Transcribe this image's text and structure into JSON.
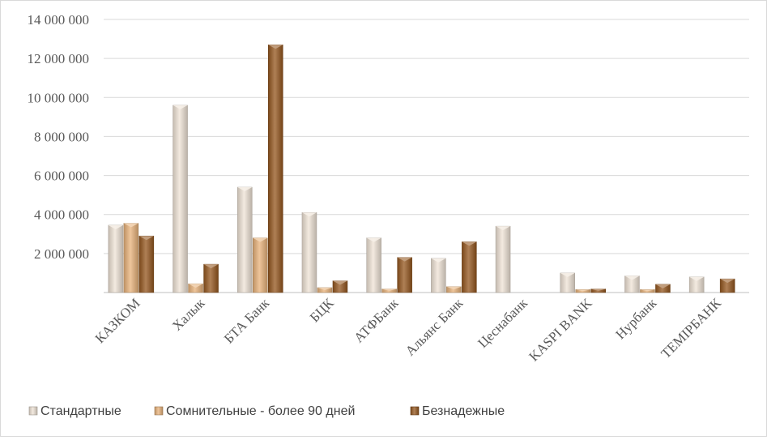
{
  "chart_data": {
    "type": "bar",
    "categories": [
      "КАЗКОМ",
      "Халык",
      "БТА Банк",
      "БЦК",
      "АТФБанк",
      "Альянс Банк",
      "Цеснабанк",
      "KASPI BANK",
      "Нурбанк",
      "ТЕМIРБАНК"
    ],
    "series": [
      {
        "name": "Стандартные",
        "color": "#efe3d6",
        "values": [
          3450000,
          9600000,
          5400000,
          4100000,
          2800000,
          1750000,
          3400000,
          1000000,
          850000,
          800000
        ]
      },
      {
        "name": "Сомнительные - более 90 дней",
        "color": "#e8b27a",
        "values": [
          3550000,
          450000,
          2800000,
          250000,
          180000,
          300000,
          0,
          150000,
          150000,
          0
        ]
      },
      {
        "name": "Безнадежные",
        "color": "#94561e",
        "values": [
          2900000,
          1450000,
          12700000,
          600000,
          1800000,
          2600000,
          0,
          180000,
          420000,
          700000
        ]
      }
    ],
    "yticks": [
      "14 000 000",
      "12 000 000",
      "10 000 000",
      "8 000 000",
      "6 000 000",
      "4 000 000",
      "2 000 000"
    ],
    "ylim": [
      0,
      14000000
    ],
    "grid": true,
    "legend_position": "bottom-left"
  }
}
